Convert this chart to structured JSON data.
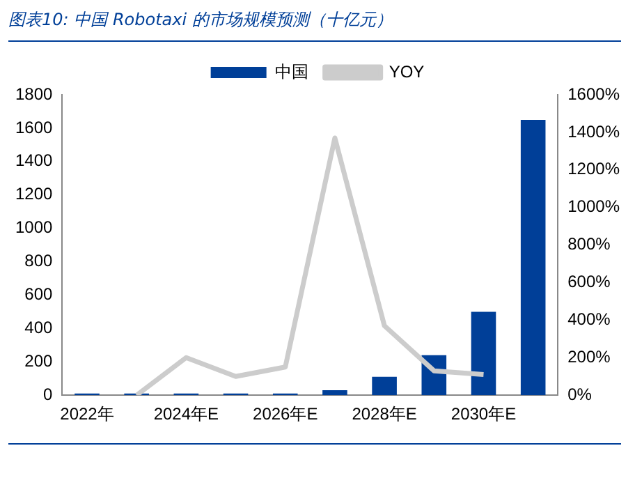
{
  "chart_data": {
    "type": "bar",
    "title": "图表10:  中国 Robotaxi 的市场规模预测（十亿元）",
    "categories": [
      "2022年",
      null,
      "2024年E",
      null,
      "2026年E",
      null,
      "2028年E",
      null,
      "2030年E",
      null
    ],
    "series": [
      {
        "name": "中国",
        "color": "#003f98",
        "values": [
          10,
          10,
          10,
          10,
          10,
          30,
          110,
          240,
          500,
          1650
        ]
      },
      {
        "name": "YOY",
        "type": "line",
        "axis": "y2",
        "color": "#cccccc",
        "values": [
          null,
          0,
          200,
          100,
          150,
          1370,
          370,
          130,
          110,
          null
        ]
      }
    ],
    "ylim": [
      0,
      1800
    ],
    "yticks": [
      0,
      200,
      400,
      600,
      800,
      1000,
      1200,
      1400,
      1600,
      1800
    ],
    "y2lim": [
      0,
      1600
    ],
    "y2ticks": [
      {
        "value": 0,
        "label": "0%"
      },
      {
        "value": 200,
        "label": "200%"
      },
      {
        "value": 400,
        "label": "400%"
      },
      {
        "value": 600,
        "label": "600%"
      },
      {
        "value": 800,
        "label": "800%"
      },
      {
        "value": 1000,
        "label": "1000%"
      },
      {
        "value": 1200,
        "label": "1200%"
      },
      {
        "value": 1400,
        "label": "1400%"
      },
      {
        "value": 1600,
        "label": "1600%"
      }
    ],
    "grid": false,
    "legend": "top",
    "marker": "none",
    "line_style": "solid"
  }
}
